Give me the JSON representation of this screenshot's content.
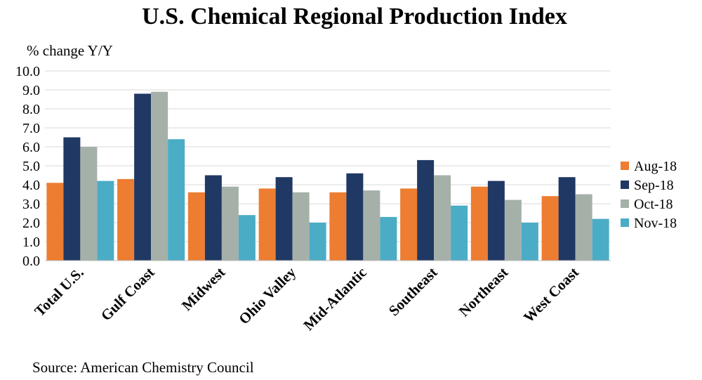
{
  "chart_data": {
    "type": "bar",
    "title": "U.S. Chemical Regional Production Index",
    "ylabel": "% change Y/Y",
    "xlabel": "",
    "ylim": [
      0,
      10
    ],
    "yticks": [
      "0.0",
      "1.0",
      "2.0",
      "3.0",
      "4.0",
      "5.0",
      "6.0",
      "7.0",
      "8.0",
      "9.0",
      "10.0"
    ],
    "grid": true,
    "legend_position": "right",
    "categories": [
      "Total U.S.",
      "Gulf Coast",
      "Midwest",
      "Ohio Valley",
      "Mid-Atlantic",
      "Southeast",
      "Northeast",
      "West Coast"
    ],
    "series": [
      {
        "name": "Aug-18",
        "color": "#ed7d31",
        "values": [
          4.1,
          4.3,
          3.6,
          3.8,
          3.6,
          3.8,
          3.9,
          3.4
        ]
      },
      {
        "name": "Sep-18",
        "color": "#203864",
        "values": [
          6.5,
          8.8,
          4.5,
          4.4,
          4.6,
          5.3,
          4.2,
          4.4
        ]
      },
      {
        "name": "Oct-18",
        "color": "#a5b0a8",
        "values": [
          6.0,
          8.9,
          3.9,
          3.6,
          3.7,
          4.5,
          3.2,
          3.5
        ]
      },
      {
        "name": "Nov-18",
        "color": "#4bacc6",
        "values": [
          4.2,
          6.4,
          2.4,
          2.0,
          2.3,
          2.9,
          2.0,
          2.2
        ]
      }
    ],
    "source": "Source: American Chemistry Council"
  }
}
